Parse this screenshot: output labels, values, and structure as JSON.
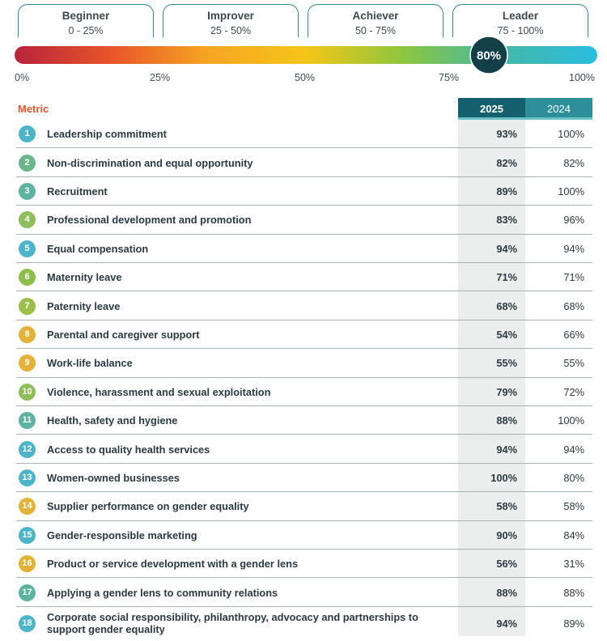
{
  "tiers": [
    {
      "name": "Beginner",
      "range": "0 - 25%"
    },
    {
      "name": "Improver",
      "range": "25 - 50%"
    },
    {
      "name": "Achiever",
      "range": "50 - 75%"
    },
    {
      "name": "Leader",
      "range": "75 - 100%"
    }
  ],
  "gauge": {
    "score": 80,
    "score_label": "80%",
    "ticks": [
      "0%",
      "25%",
      "50%",
      "75%",
      "100%"
    ],
    "gradient": [
      "#b8243a",
      "#e8552a",
      "#f6a623",
      "#f5c518",
      "#8cc63e",
      "#45b8a8",
      "#2bbde0"
    ],
    "marker_color": "#123f48"
  },
  "table": {
    "metric_header": "Metric",
    "col_2025": "2025",
    "col_2024": "2024"
  },
  "chart_data": {
    "type": "table",
    "columns": [
      "Metric",
      "2025",
      "2024"
    ],
    "rows": [
      {
        "n": "1",
        "metric": "Leadership commitment",
        "v2025": "93%",
        "v2024": "100%",
        "color": "#4db5c7"
      },
      {
        "n": "2",
        "metric": "Non-discrimination and equal opportunity",
        "v2025": "82%",
        "v2024": "82%",
        "color": "#6ab88a"
      },
      {
        "n": "3",
        "metric": "Recruitment",
        "v2025": "89%",
        "v2024": "100%",
        "color": "#5bb3a0"
      },
      {
        "n": "4",
        "metric": "Professional development and promotion",
        "v2025": "83%",
        "v2024": "96%",
        "color": "#8dbe5a"
      },
      {
        "n": "5",
        "metric": "Equal compensation",
        "v2025": "94%",
        "v2024": "94%",
        "color": "#4db5c7"
      },
      {
        "n": "6",
        "metric": "Maternity leave",
        "v2025": "71%",
        "v2024": "71%",
        "color": "#8dbe4a"
      },
      {
        "n": "7",
        "metric": "Paternity leave",
        "v2025": "68%",
        "v2024": "68%",
        "color": "#9bbf4a"
      },
      {
        "n": "8",
        "metric": "Parental and caregiver support",
        "v2025": "54%",
        "v2024": "66%",
        "color": "#e3b236"
      },
      {
        "n": "9",
        "metric": "Work-life balance",
        "v2025": "55%",
        "v2024": "55%",
        "color": "#e3b236"
      },
      {
        "n": "10",
        "metric": "Violence, harassment and sexual exploitation",
        "v2025": "79%",
        "v2024": "72%",
        "color": "#8dbe5a"
      },
      {
        "n": "11",
        "metric": "Health, safety and hygiene",
        "v2025": "88%",
        "v2024": "100%",
        "color": "#5bb3a0"
      },
      {
        "n": "12",
        "metric": "Access to quality health services",
        "v2025": "94%",
        "v2024": "94%",
        "color": "#4db5c7"
      },
      {
        "n": "13",
        "metric": "Women-owned businesses",
        "v2025": "100%",
        "v2024": "80%",
        "color": "#4db5c7"
      },
      {
        "n": "14",
        "metric": "Supplier performance on gender equality",
        "v2025": "58%",
        "v2024": "58%",
        "color": "#e3b236"
      },
      {
        "n": "15",
        "metric": "Gender-responsible marketing",
        "v2025": "90%",
        "v2024": "84%",
        "color": "#4db5c7"
      },
      {
        "n": "16",
        "metric": "Product or service development with a gender lens",
        "v2025": "56%",
        "v2024": "31%",
        "color": "#e3b236"
      },
      {
        "n": "17",
        "metric": "Applying a gender lens to community relations",
        "v2025": "88%",
        "v2024": "88%",
        "color": "#5bb3a0"
      },
      {
        "n": "18",
        "metric": "Corporate social responsibility, philanthropy, advocacy and partnerships to support gender equality",
        "v2025": "94%",
        "v2024": "89%",
        "color": "#4db5c7"
      }
    ]
  }
}
